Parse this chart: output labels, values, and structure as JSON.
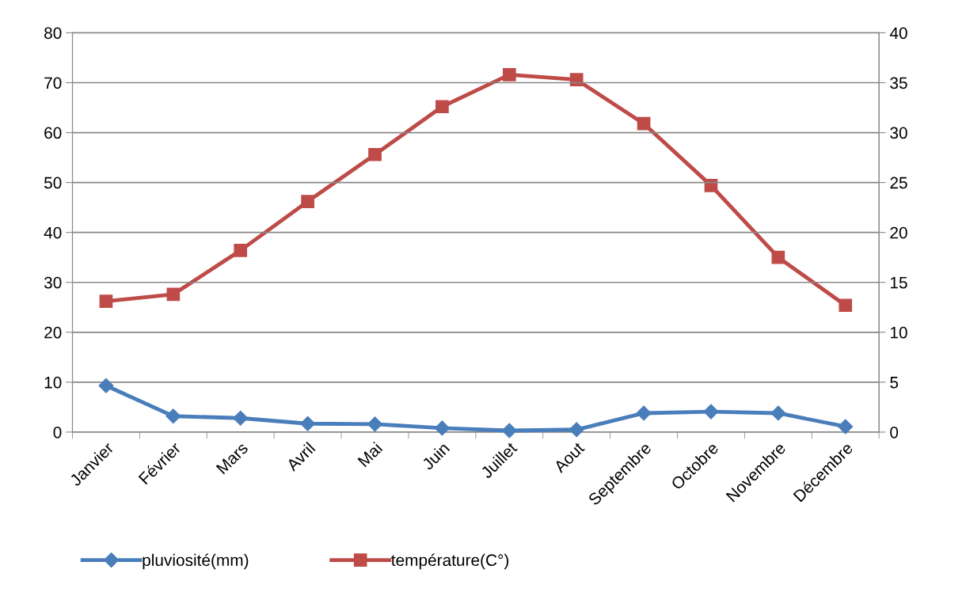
{
  "chart_data": {
    "type": "line",
    "categories": [
      "Janvier",
      "Février",
      "Mars",
      "Avril",
      "Mai",
      "Juin",
      "Juillet",
      "Aout",
      "Septembre",
      "Octobre",
      "Novembre",
      "Décembre"
    ],
    "series": [
      {
        "name": "pluviosité(mm)",
        "color": "#4a7ebb",
        "marker": "diamond",
        "values": [
          9.3,
          3.2,
          2.8,
          1.7,
          1.6,
          0.8,
          0.3,
          0.5,
          3.8,
          4.1,
          3.8,
          1.1
        ]
      },
      {
        "name": "température(C°)",
        "color": "#be4b48",
        "marker": "square",
        "axis": "y2",
        "values": [
          13.1,
          13.8,
          18.2,
          23.1,
          27.8,
          32.6,
          35.8,
          35.3,
          30.9,
          24.7,
          17.5,
          12.7
        ]
      }
    ],
    "ylim": [
      0,
      80
    ],
    "yticks": [
      0,
      10,
      20,
      30,
      40,
      50,
      60,
      70,
      80
    ],
    "y2lim": [
      0,
      40
    ],
    "y2ticks": [
      0,
      5,
      10,
      15,
      20,
      25,
      30,
      35,
      40
    ],
    "grid": "y",
    "legend": "bottom",
    "line_style": "solid"
  }
}
